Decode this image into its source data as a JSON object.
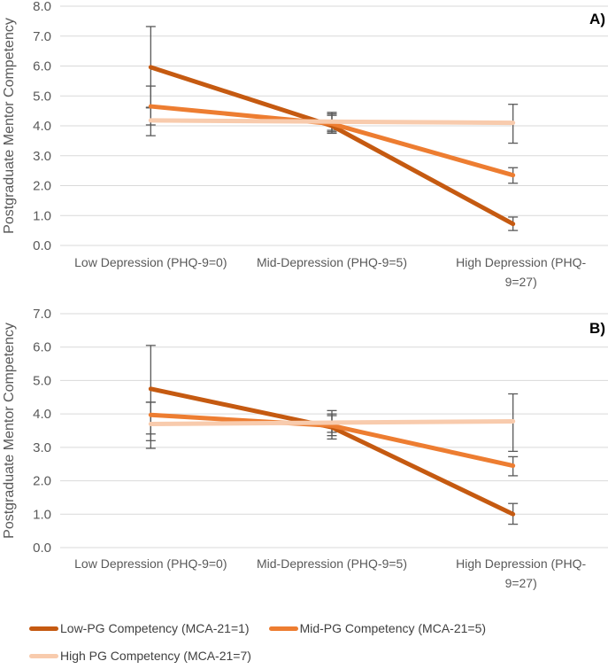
{
  "colors": {
    "low_pg": "#C55A11",
    "mid_pg": "#ED7D31",
    "high_pg": "#F8CBAD",
    "gridline": "#D9D9D9",
    "axis_text": "#595959",
    "error_bar": "#595959",
    "legend_text": "#404040",
    "panel_label": "#000000",
    "background": "#FFFFFF"
  },
  "legend": {
    "position": "bottom-left",
    "items": [
      {
        "label": "Low-PG Competency (MCA-21=1)",
        "color_key": "low_pg"
      },
      {
        "label": "Mid-PG Competency (MCA-21=5)",
        "color_key": "mid_pg"
      },
      {
        "label": "High PG Competency (MCA-21=7)",
        "color_key": "high_pg"
      }
    ]
  },
  "chart_data": [
    {
      "type": "line",
      "panel_label": "A)",
      "title": "",
      "xlabel": "",
      "ylabel": "Postgraduate Mentor Competency",
      "ylim": [
        0,
        8
      ],
      "ytick_step": 1,
      "grid": true,
      "categories": [
        "Low Depression (PHQ-9=0)",
        "Mid-Depression (PHQ-9=5)",
        "High Depression (PHQ-9=27)"
      ],
      "series": [
        {
          "name": "Low-PG Competency (MCA-21=1)",
          "color_key": "low_pg",
          "values": [
            5.96,
            4.0,
            0.72
          ],
          "error_bars": [
            [
              4.6,
              7.32
            ],
            [
              3.75,
              4.35
            ],
            [
              0.5,
              0.95
            ]
          ]
        },
        {
          "name": "Mid-PG Competency (MCA-21=5)",
          "color_key": "mid_pg",
          "values": [
            4.65,
            4.07,
            2.35
          ],
          "error_bars": [
            [
              4.03,
              5.33
            ],
            [
              3.8,
              4.4
            ],
            [
              2.08,
              2.6
            ]
          ]
        },
        {
          "name": "High PG Competency (MCA-21=7)",
          "color_key": "high_pg",
          "values": [
            4.18,
            4.14,
            4.1
          ],
          "error_bars": [
            [
              3.67,
              4.62
            ],
            [
              3.85,
              4.45
            ],
            [
              3.42,
              4.72
            ]
          ]
        }
      ]
    },
    {
      "type": "line",
      "panel_label": "B)",
      "title": "",
      "xlabel": "",
      "ylabel": "Postgraduate Mentor Competency",
      "ylim": [
        0,
        7
      ],
      "ytick_step": 1,
      "grid": true,
      "categories": [
        "Low Depression (PHQ-9=0)",
        "Mid-Depression (PHQ-9=5)",
        "High Depression (PHQ-9=27)"
      ],
      "series": [
        {
          "name": "Low-PG Competency (MCA-21=1)",
          "color_key": "low_pg",
          "values": [
            4.75,
            3.6,
            1.0
          ],
          "error_bars": [
            [
              2.97,
              6.05
            ],
            [
              3.25,
              3.95
            ],
            [
              0.7,
              1.32
            ]
          ]
        },
        {
          "name": "Mid-PG Competency (MCA-21=5)",
          "color_key": "mid_pg",
          "values": [
            3.97,
            3.65,
            2.45
          ],
          "error_bars": [
            [
              3.4,
              4.35
            ],
            [
              3.35,
              4.0
            ],
            [
              2.15,
              2.72
            ]
          ]
        },
        {
          "name": "High PG Competency (MCA-21=7)",
          "color_key": "high_pg",
          "values": [
            3.7,
            3.74,
            3.78
          ],
          "error_bars": [
            [
              3.2,
              4.35
            ],
            [
              3.45,
              4.1
            ],
            [
              2.88,
              4.6
            ]
          ]
        }
      ]
    }
  ]
}
